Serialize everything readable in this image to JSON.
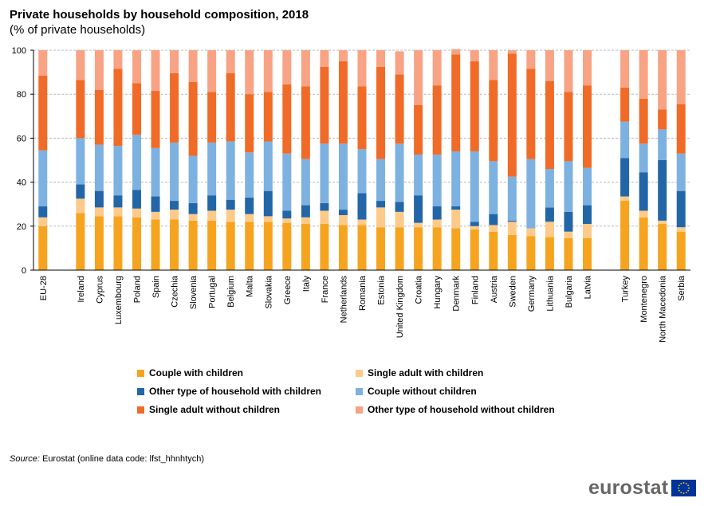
{
  "chart_data": {
    "type": "bar",
    "stacked": true,
    "title": "Private households by household composition, 2018",
    "subtitle": "(% of private households)",
    "xlabel": "",
    "ylabel": "",
    "ylim": [
      0,
      100
    ],
    "yticks": [
      0,
      20,
      40,
      60,
      80,
      100
    ],
    "grid": true,
    "legend_position": "bottom",
    "categories": [
      "EU-28",
      "",
      "Ireland",
      "Cyprus",
      "Luxembourg",
      "Poland",
      "Spain",
      "Czechia",
      "Slovenia",
      "Portugal",
      "Belgium",
      "Malta",
      "Slovakia",
      "Greece",
      "Italy",
      "France",
      "Netherlands",
      "Romania",
      "Estonia",
      "United Kingdom",
      "Croatia",
      "Hungary",
      "Denmark",
      "Finland",
      "Austria",
      "Sweden",
      "Germany",
      "Lithuania",
      "Bulgaria",
      "Latvia",
      "",
      "Turkey",
      "Montenegro",
      "North Macedonia",
      "Serbia"
    ],
    "series": [
      {
        "name": "Couple with children",
        "color": "#F6A41F",
        "values": [
          20,
          null,
          26,
          24.5,
          24.5,
          24,
          23,
          23,
          22.5,
          22.5,
          22,
          22,
          22,
          21.5,
          21,
          21,
          20.5,
          20.5,
          19.5,
          19.5,
          19.5,
          19.5,
          19,
          18.5,
          17.5,
          16,
          15.5,
          15,
          14.5,
          14.5,
          null,
          31.5,
          24,
          21,
          17.5
        ]
      },
      {
        "name": "Single adult with children",
        "color": "#FDCA89",
        "values": [
          4,
          null,
          6.5,
          4,
          4,
          4,
          3.5,
          4.5,
          3,
          4.5,
          5.5,
          3.5,
          2.5,
          2,
          3,
          6,
          4.5,
          2.5,
          9,
          7,
          2,
          3.5,
          8.5,
          1.5,
          3,
          6,
          3.5,
          7,
          3,
          6.5,
          null,
          2,
          3,
          1.5,
          2
        ]
      },
      {
        "name": "Other type of household with children",
        "color": "#2266A8",
        "values": [
          5,
          null,
          6.5,
          7.5,
          5.5,
          8.5,
          7,
          4,
          5,
          7,
          4.5,
          7.5,
          11.5,
          3.5,
          5.5,
          3.5,
          2.5,
          12,
          3,
          4.5,
          12.5,
          6,
          1.5,
          2,
          5,
          0.5,
          0,
          6.5,
          9,
          8.5,
          null,
          17.5,
          17.5,
          27.5,
          16.5
        ]
      },
      {
        "name": "Couple without children",
        "color": "#7DB1E0",
        "values": [
          25.5,
          null,
          21,
          21,
          22.5,
          25,
          22,
          26.5,
          21.5,
          24,
          26.5,
          20.5,
          22.5,
          26,
          21,
          27,
          30,
          20,
          19,
          26.5,
          18.5,
          23.5,
          25,
          32,
          24,
          20,
          31.5,
          17.5,
          23,
          17,
          null,
          16.5,
          13,
          14,
          17
        ]
      },
      {
        "name": "Single adult without children",
        "color": "#F06B27",
        "values": [
          34,
          null,
          26.5,
          25,
          35,
          23.5,
          26,
          31.5,
          33.5,
          23,
          31,
          26.5,
          22.5,
          31.5,
          33,
          35,
          37.5,
          28.5,
          42,
          31.5,
          22.5,
          31.5,
          44,
          41,
          37,
          56,
          41,
          40,
          31.5,
          37.5,
          null,
          15.5,
          20.5,
          9,
          22.5
        ]
      },
      {
        "name": "Other type of household without children",
        "color": "#F7A384",
        "values": [
          11.5,
          null,
          13.5,
          18,
          8.5,
          15,
          18.5,
          10.5,
          14.5,
          19,
          10.5,
          20,
          19,
          15.5,
          16.5,
          7.5,
          5,
          16.5,
          7.5,
          10.5,
          25,
          16,
          2.5,
          5,
          13.5,
          1.5,
          8.5,
          14,
          19,
          16,
          null,
          17,
          22,
          27,
          24.5
        ]
      }
    ]
  },
  "source": {
    "label": "Source:",
    "text": " Eurostat (online data code: lfst_hhnhtych)"
  },
  "logo": {
    "text": "eurostat"
  },
  "colors": {
    "grid": "#bbbbbb",
    "axis": "#000000",
    "eu_blue": "#003399",
    "eu_star": "#FFDD00"
  }
}
